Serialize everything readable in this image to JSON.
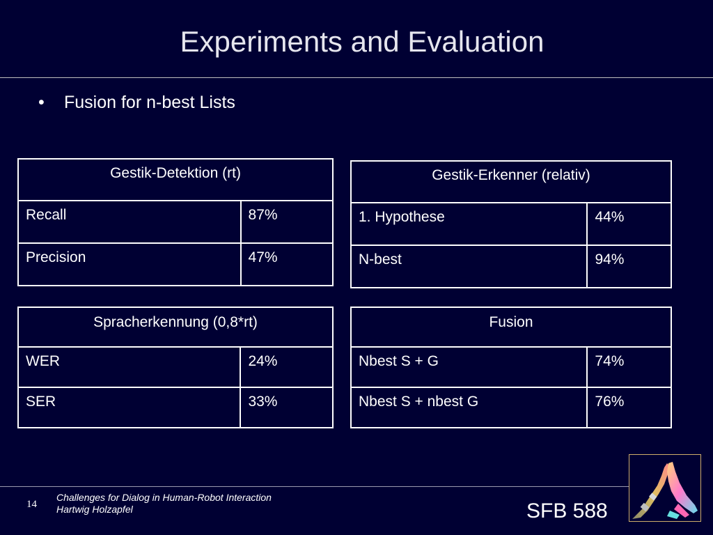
{
  "slide": {
    "title": "Experiments and Evaluation",
    "bullet_marker": "•",
    "bullet": "Fusion for n-best Lists"
  },
  "tables": [
    {
      "header": "Gestik-Detektion (rt)",
      "rows": [
        {
          "label": "Recall",
          "value": "87%"
        },
        {
          "label": "Precision",
          "value": "47%"
        }
      ]
    },
    {
      "header": "Gestik-Erkenner (relativ)",
      "rows": [
        {
          "label": "1. Hypothese",
          "value": "44%"
        },
        {
          "label": "N-best",
          "value": "94%"
        }
      ]
    },
    {
      "header": "Spracherkennung (0,8*rt)",
      "rows": [
        {
          "label": "WER",
          "value": "24%"
        },
        {
          "label": "SER",
          "value": "33%"
        }
      ]
    },
    {
      "header": "Fusion",
      "rows": [
        {
          "label": "Nbest S + G",
          "value": "74%"
        },
        {
          "label": "Nbest S + nbest G",
          "value": "76%"
        }
      ]
    }
  ],
  "footer": {
    "page_number": "14",
    "line1": "Challenges for Dialog in Human-Robot Interaction",
    "line2": "Hartwig Holzapfel",
    "brand": "SFB 588",
    "logo_icon": "robot-hand-icon"
  },
  "colors": {
    "background": "#000033",
    "text": "#ffffff",
    "logo_border": "#cfae6a"
  }
}
